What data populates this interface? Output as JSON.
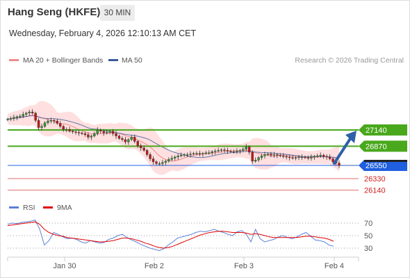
{
  "header": {
    "title": "Hang Seng (HKFE)",
    "interval": "30 MIN",
    "datetime": "Wednesday, February 4, 2026 12:10:13 AM CET"
  },
  "legend": {
    "ma20_label": "MA 20 + Bollinger Bands",
    "ma50_label": "MA 50",
    "ma20_color": "#f08a8a",
    "ma50_color": "#3a5a9a",
    "copyright": "Research © 2026 Trading Central"
  },
  "rsi_legend": {
    "rsi_label": "RSI",
    "ma_label": "9MA",
    "rsi_color": "#5b7fd6",
    "ma_color": "#e00000"
  },
  "colors": {
    "up_candle": "#2e9a2e",
    "down_candle": "#c01818",
    "resistance": "#4aa81c",
    "pivot": "#1f5fe0",
    "support": "#e07070",
    "band_fill": "#ffd9d9",
    "arrow": "#2e5fa8"
  },
  "chart_data": [
    {
      "type": "candlestick",
      "title": "Hang Seng (HKFE)",
      "interval": "30 MIN",
      "x_labels": [
        "Jan 30",
        "Feb 2",
        "Feb 3",
        "Feb 4"
      ],
      "y_range": [
        26050,
        27500
      ],
      "close_series": [
        27320,
        27330,
        27350,
        27360,
        27370,
        27400,
        27420,
        27440,
        27420,
        27300,
        27180,
        27200,
        27260,
        27290,
        27300,
        27290,
        27250,
        27200,
        27150,
        27150,
        27120,
        27110,
        27100,
        27090,
        27080,
        27060,
        27020,
        27040,
        27080,
        27140,
        27120,
        27090,
        27100,
        27120,
        27080,
        27040,
        27000,
        26980,
        26940,
        26980,
        27020,
        26950,
        26880,
        26840,
        26800,
        26730,
        26660,
        26610,
        26580,
        26580,
        26600,
        26620,
        26650,
        26670,
        26690,
        26710,
        26720,
        26730,
        26730,
        26740,
        26750,
        26750,
        26740,
        26750,
        26760,
        26760,
        26780,
        26790,
        26800,
        26810,
        26800,
        26790,
        26780,
        26780,
        26790,
        26800,
        26820,
        26860,
        26770,
        26620,
        26640,
        26680,
        26710,
        26730,
        26740,
        26720,
        26730,
        26720,
        26710,
        26700,
        26690,
        26680,
        26670,
        26680,
        26690,
        26690,
        26680,
        26670,
        26690,
        26700,
        26710,
        26720,
        26700,
        26690,
        26660,
        26610,
        26590,
        26550
      ],
      "ma20_series_description": "smooth moving average inside Bollinger band",
      "levels": [
        {
          "label": "27140",
          "value": 27140,
          "kind": "resistance"
        },
        {
          "label": "26870",
          "value": 26870,
          "kind": "resistance"
        },
        {
          "label": "26550",
          "value": 26550,
          "kind": "pivot"
        },
        {
          "label": "26330",
          "value": 26330,
          "kind": "support"
        },
        {
          "label": "26140",
          "value": 26140,
          "kind": "support"
        }
      ],
      "forecast": "upward arrow from 26550 toward 27140"
    },
    {
      "type": "line",
      "title": "RSI",
      "series": [
        {
          "name": "RSI",
          "values": [
            68,
            70,
            69,
            71,
            72,
            73,
            75,
            60,
            35,
            42,
            55,
            52,
            48,
            45,
            46,
            44,
            40,
            38,
            42,
            40,
            38,
            39,
            44,
            46,
            50,
            52,
            47,
            43,
            40,
            36,
            33,
            30,
            28,
            26,
            29,
            35,
            40,
            46,
            48,
            50,
            52,
            55,
            57,
            56,
            58,
            60,
            57,
            55,
            52,
            50,
            56,
            58,
            52,
            40,
            60,
            45,
            40,
            42,
            44,
            48,
            50,
            47,
            45,
            48,
            52,
            55,
            49,
            43,
            42,
            40,
            35,
            33
          ]
        },
        {
          "name": "9MA",
          "values": [
            66,
            67,
            68,
            69,
            70,
            71,
            72,
            68,
            60,
            55,
            52,
            50,
            49,
            47,
            46,
            45,
            44,
            43,
            42,
            41,
            40,
            40,
            41,
            42,
            44,
            46,
            46,
            45,
            43,
            41,
            38,
            36,
            33,
            31,
            30,
            31,
            33,
            36,
            39,
            42,
            45,
            48,
            51,
            53,
            55,
            56,
            57,
            57,
            56,
            55,
            55,
            55,
            54,
            52,
            53,
            52,
            50,
            48,
            47,
            47,
            47,
            47,
            47,
            47,
            48,
            49,
            49,
            48,
            47,
            46,
            44,
            41
          ]
        }
      ],
      "y_ticks": [
        70,
        50,
        30
      ],
      "ylim": [
        20,
        80
      ]
    }
  ]
}
